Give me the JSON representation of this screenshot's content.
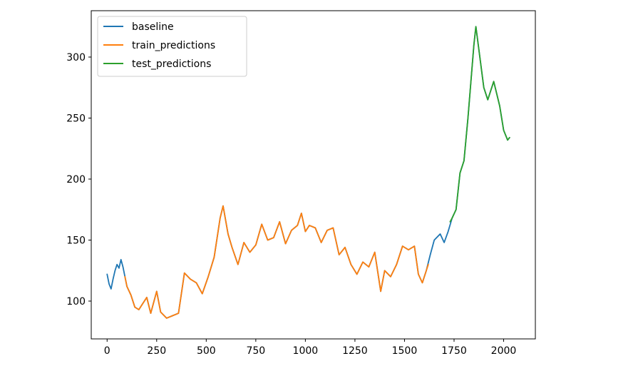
{
  "chart_data": {
    "type": "line",
    "title": "",
    "xlabel": "",
    "ylabel": "",
    "xlim": [
      -80,
      2160
    ],
    "ylim": [
      69,
      338
    ],
    "xticks": [
      0,
      250,
      500,
      750,
      1000,
      1250,
      1500,
      1750,
      2000
    ],
    "xtick_labels": [
      "0",
      "250",
      "500",
      "750",
      "1000",
      "1250",
      "1500",
      "1750",
      "2000"
    ],
    "yticks": [
      100,
      150,
      200,
      250,
      300
    ],
    "ytick_labels": [
      "100",
      "150",
      "200",
      "250",
      "300"
    ],
    "grid": false,
    "legend_position": "upper-left",
    "series": [
      {
        "name": "baseline",
        "color": "#1f77b4",
        "x": [
          0,
          10,
          20,
          30,
          40,
          50,
          60,
          70,
          80,
          90,
          100,
          120,
          140,
          160,
          180,
          200,
          220,
          250,
          270,
          300,
          330,
          360,
          390,
          420,
          450,
          480,
          510,
          540,
          570,
          585,
          610,
          630,
          660,
          690,
          720,
          750,
          780,
          810,
          840,
          870,
          900,
          930,
          960,
          980,
          1000,
          1020,
          1050,
          1080,
          1110,
          1140,
          1170,
          1200,
          1230,
          1260,
          1290,
          1320,
          1350,
          1380,
          1400,
          1430,
          1460,
          1490,
          1520,
          1550,
          1570,
          1590,
          1610,
          1630,
          1650,
          1680,
          1700,
          1720,
          1740,
          1760,
          1780,
          1800,
          1820,
          1840,
          1850,
          1860,
          1880,
          1900,
          1920,
          1950,
          1980,
          2000,
          2020,
          2030
        ],
        "values": [
          122,
          114,
          110,
          118,
          125,
          130,
          127,
          134,
          128,
          120,
          112,
          105,
          95,
          93,
          98,
          103,
          90,
          108,
          91,
          86,
          88,
          90,
          123,
          118,
          115,
          106,
          120,
          136,
          168,
          178,
          155,
          144,
          130,
          148,
          140,
          146,
          163,
          150,
          152,
          165,
          147,
          158,
          162,
          172,
          157,
          162,
          160,
          148,
          158,
          160,
          138,
          144,
          130,
          122,
          132,
          128,
          140,
          108,
          125,
          120,
          130,
          145,
          142,
          145,
          122,
          115,
          125,
          138,
          150,
          155,
          148,
          157,
          168,
          175,
          205,
          215,
          250,
          290,
          310,
          325,
          300,
          275,
          265,
          280,
          260,
          240,
          232,
          234
        ]
      },
      {
        "name": "train_predictions",
        "color": "#ff7f0e",
        "x": [
          90,
          100,
          120,
          140,
          160,
          180,
          200,
          220,
          250,
          270,
          300,
          330,
          360,
          390,
          420,
          450,
          480,
          510,
          540,
          570,
          585,
          610,
          630,
          660,
          690,
          720,
          750,
          780,
          810,
          840,
          870,
          900,
          930,
          960,
          980,
          1000,
          1020,
          1050,
          1080,
          1110,
          1140,
          1170,
          1200,
          1230,
          1260,
          1290,
          1320,
          1350,
          1380,
          1400,
          1430,
          1460,
          1490,
          1520,
          1550,
          1570,
          1590,
          1610,
          1620
        ],
        "values": [
          120,
          112,
          105,
          95,
          93,
          98,
          103,
          90,
          108,
          91,
          86,
          88,
          90,
          123,
          118,
          115,
          106,
          120,
          136,
          168,
          178,
          155,
          144,
          130,
          148,
          140,
          146,
          163,
          150,
          152,
          165,
          147,
          158,
          162,
          172,
          157,
          162,
          160,
          148,
          158,
          160,
          138,
          144,
          130,
          122,
          132,
          128,
          140,
          108,
          125,
          120,
          130,
          145,
          142,
          145,
          122,
          115,
          125,
          130
        ]
      },
      {
        "name": "test_predictions",
        "color": "#2ca02c",
        "x": [
          1730,
          1740,
          1760,
          1780,
          1800,
          1820,
          1840,
          1850,
          1860,
          1880,
          1900,
          1920,
          1950,
          1980,
          2000,
          2020,
          2030
        ],
        "values": [
          165,
          168,
          175,
          205,
          215,
          250,
          290,
          310,
          325,
          300,
          275,
          265,
          280,
          260,
          240,
          232,
          234
        ]
      }
    ]
  }
}
